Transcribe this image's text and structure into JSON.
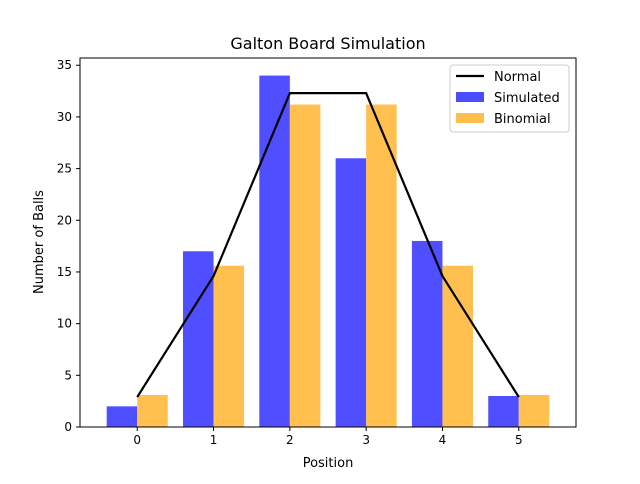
{
  "chart_data": {
    "type": "bar",
    "title": "Galton Board Simulation",
    "xlabel": "Position",
    "ylabel": "Number of Balls",
    "categories": [
      0,
      1,
      2,
      3,
      4,
      5
    ],
    "xlim": [
      -0.75,
      5.75
    ],
    "ylim": [
      0,
      35.7
    ],
    "xticks": [
      "0",
      "1",
      "2",
      "3",
      "4",
      "5"
    ],
    "yticks": [
      0,
      5,
      10,
      15,
      20,
      25,
      30,
      35
    ],
    "grid": false,
    "legend_position": "top-right",
    "series": [
      {
        "name": "Simulated",
        "kind": "bar",
        "color": "#4b4bff",
        "values": [
          2,
          17,
          34,
          26,
          18,
          3
        ]
      },
      {
        "name": "Binomial",
        "kind": "bar",
        "color": "#ffbf4d",
        "values": [
          3.1,
          15.6,
          31.2,
          31.2,
          15.6,
          3.1
        ]
      },
      {
        "name": "Normal",
        "kind": "line",
        "color": "#000000",
        "values": [
          2.9,
          14.6,
          32.3,
          32.3,
          14.6,
          2.9
        ]
      }
    ]
  }
}
